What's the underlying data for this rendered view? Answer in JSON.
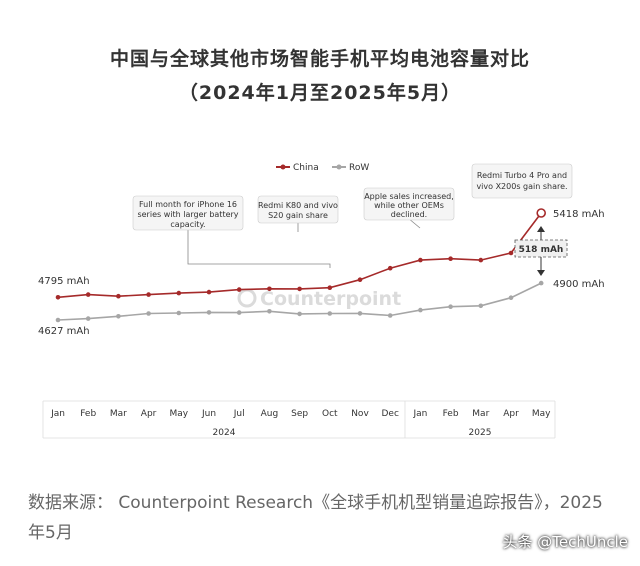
{
  "title": "中国与全球其他市场智能手机平均电池容量对比",
  "subtitle": "（2024年1月至2025年5月）",
  "chart_data": {
    "type": "line",
    "categories": [
      "Jan",
      "Feb",
      "Mar",
      "Apr",
      "May",
      "Jun",
      "Jul",
      "Aug",
      "Sep",
      "Oct",
      "Nov",
      "Dec",
      "Jan",
      "Feb",
      "Mar",
      "Apr",
      "May"
    ],
    "year_labels": [
      "2024",
      "2025"
    ],
    "series": [
      {
        "name": "China",
        "color": "#a52a2a",
        "values": [
          4795,
          4815,
          4803,
          4815,
          4826,
          4833,
          4852,
          4858,
          4857,
          4866,
          4925,
          5010,
          5070,
          5080,
          5070,
          5122,
          5418
        ]
      },
      {
        "name": "RoW",
        "color": "#a6a6a6",
        "values": [
          4627,
          4637,
          4654,
          4675,
          4679,
          4683,
          4682,
          4691,
          4672,
          4675,
          4676,
          4660,
          4700,
          4725,
          4732,
          4792,
          4900
        ]
      }
    ],
    "start_labels": {
      "china": "4795 mAh",
      "row": "4627 mAh"
    },
    "end_labels": {
      "china": "5418 mAh",
      "row": "4900 mAh"
    },
    "gap_label": "518 mAh",
    "legend_position": "top",
    "grid": false,
    "annotations": [
      {
        "lines": [
          "Full month for iPhone 16",
          "series with larger battery",
          "capacity."
        ]
      },
      {
        "lines": [
          "Redmi K80 and vivo",
          "S20 gain share"
        ]
      },
      {
        "lines": [
          "Apple sales increased,",
          "while other OEMs",
          "declined."
        ]
      },
      {
        "lines": [
          "Redmi Turbo 4 Pro and",
          "vivo X200s gain share."
        ]
      }
    ]
  },
  "watermark_logo": "Counterpoint",
  "source_text": "数据来源： Counterpoint Research《全球手机机型销量追踪报告》，2025年5月",
  "credit": "头条 @TechUncle"
}
